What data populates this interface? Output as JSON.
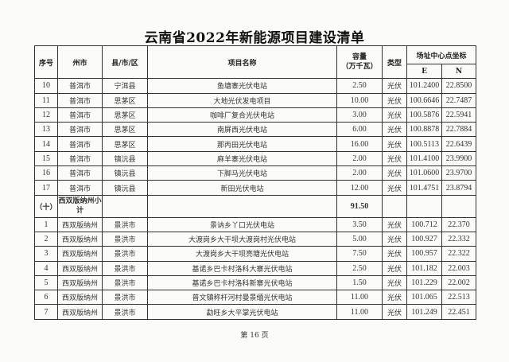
{
  "title": "云南省2022年新能源项目建设清单",
  "headers": {
    "seq": "序号",
    "prefecture": "州市",
    "county": "县/市/区",
    "name": "项目名称",
    "capacity": "容量\n（万千瓦）",
    "capacity_l1": "容量",
    "capacity_l2": "（万千瓦）",
    "type": "类型",
    "coord": "场址中心点坐标",
    "e": "E",
    "n": "N"
  },
  "rows_a": [
    [
      "10",
      "普洱市",
      "宁洱县",
      "鱼塘寨光伏电站",
      "2.50",
      "光伏",
      "101.2400",
      "22.8500"
    ],
    [
      "11",
      "普洱市",
      "思茅区",
      "大地光伏发电项目",
      "10.00",
      "光伏",
      "100.6646",
      "22.7487"
    ],
    [
      "12",
      "普洱市",
      "思茅区",
      "咖啡厂复合光伏电站",
      "3.00",
      "光伏",
      "100.5876",
      "22.5941"
    ],
    [
      "13",
      "普洱市",
      "思茅区",
      "南屏西光伏电站",
      "6.00",
      "光伏",
      "100.8878",
      "22.7884"
    ],
    [
      "14",
      "普洱市",
      "思茅区",
      "那丙田光伏电站",
      "16.00",
      "光伏",
      "100.5113",
      "22.6439"
    ],
    [
      "15",
      "普洱市",
      "镇沅县",
      "麻羊寨光伏电站",
      "2.00",
      "光伏",
      "101.4100",
      "23.9900"
    ],
    [
      "16",
      "普洱市",
      "镇沅县",
      "下脚马光伏电站",
      "2.00",
      "光伏",
      "101.0600",
      "23.9700"
    ],
    [
      "17",
      "普洱市",
      "镇沅县",
      "新田光伏电站",
      "12.00",
      "光伏",
      "101.4751",
      "23.8794"
    ]
  ],
  "subtotal": {
    "seq": "（十）",
    "label": "西双版纳州小计",
    "capacity": "91.50"
  },
  "rows_b": [
    [
      "1",
      "西双版纳州",
      "景洪市",
      "景讷乡丫口光伏电站",
      "3.50",
      "光伏",
      "100.712",
      "22.370"
    ],
    [
      "2",
      "西双版纳州",
      "景洪市",
      "大渡岗乡大干坝大渡岗村光伏电站",
      "5.00",
      "光伏",
      "100.927",
      "22.332"
    ],
    [
      "3",
      "西双版纳州",
      "景洪市",
      "大渡岗乡大干坝亮塘光伏电站",
      "7.50",
      "光伏",
      "100.957",
      "22.322"
    ],
    [
      "4",
      "西双版纳州",
      "景洪市",
      "基诺乡巴卡村洛科大寨光伏电站",
      "2.50",
      "光伏",
      "101.182",
      "22.003"
    ],
    [
      "5",
      "西双版纳州",
      "景洪市",
      "基诺乡巴卡村洛科新寨光伏电站",
      "1.50",
      "光伏",
      "101.229",
      "22.002"
    ],
    [
      "6",
      "西双版纳州",
      "景洪市",
      "普文镇称杆河村曼景缅光伏电站",
      "11.00",
      "光伏",
      "101.065",
      "22.513"
    ],
    [
      "7",
      "西双版纳州",
      "景洪市",
      "勐旺乡大平掌光伏电站",
      "11.00",
      "光伏",
      "101.249",
      "22.451"
    ]
  ],
  "footer": "第 16 页"
}
